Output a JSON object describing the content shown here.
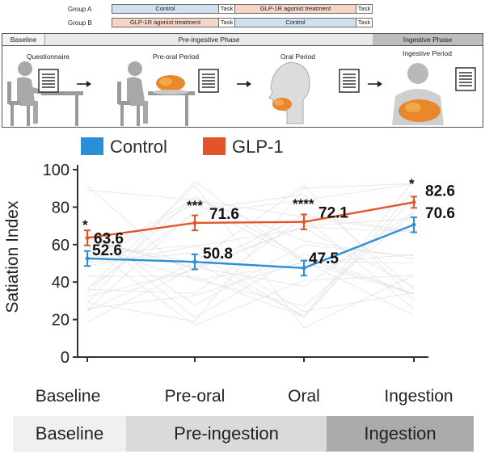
{
  "design": {
    "group_a": {
      "label": "Group A",
      "segments": [
        {
          "text": "Control",
          "color": "#cfe0f0"
        },
        {
          "text": "Task",
          "color": "#ffffff"
        },
        {
          "text": "GLP-1R agonist treatment",
          "color": "#f6d4c6"
        },
        {
          "text": "Task",
          "color": "#ffffff"
        }
      ]
    },
    "group_b": {
      "label": "Group B",
      "segments": [
        {
          "text": "GLP-1R agonist treatment",
          "color": "#f6d4c6"
        },
        {
          "text": "Task",
          "color": "#ffffff"
        },
        {
          "text": "Control",
          "color": "#cfe0f0"
        },
        {
          "text": "Task",
          "color": "#ffffff"
        }
      ]
    },
    "phases": [
      "Baseline",
      "Pre-ingestive Phase",
      "Ingestive Phase"
    ],
    "periods": [
      "Questionnaire",
      "Pre-oral Period",
      "Oral Period",
      "Ingestive Period"
    ]
  },
  "legend": [
    {
      "label": "Control",
      "color": "#2a8fd6"
    },
    {
      "label": "GLP-1",
      "color": "#e2552a"
    }
  ],
  "chart_data": {
    "type": "line",
    "categories": [
      "Baseline",
      "Pre-oral",
      "Oral",
      "Ingestion"
    ],
    "ylabel": "Satiation Index",
    "ylim": [
      0,
      100
    ],
    "yticks": [
      "0",
      "20",
      "40",
      "60",
      "80",
      "100"
    ],
    "series": [
      {
        "name": "Control",
        "color": "#2a8fd6",
        "values": [
          52.6,
          50.8,
          47.5,
          70.6
        ],
        "errors": [
          4,
          4,
          4,
          4
        ]
      },
      {
        "name": "GLP-1",
        "color": "#e2552a",
        "values": [
          63.6,
          71.6,
          72.1,
          82.6
        ],
        "errors": [
          4,
          4,
          4,
          3
        ]
      }
    ],
    "value_labels": {
      "glp1": [
        "63.6",
        "71.6",
        "72.1",
        "82.6"
      ],
      "control": [
        "52.6",
        "50.8",
        "47.5",
        "70.6"
      ]
    },
    "significance": [
      "*",
      "***",
      "****",
      "*"
    ]
  },
  "bottom_phases": [
    {
      "label": "Baseline",
      "color": "#f0f0f0"
    },
    {
      "label": "Pre-ingestion",
      "color": "#dadada"
    },
    {
      "label": "Ingestion",
      "color": "#ababab"
    }
  ]
}
